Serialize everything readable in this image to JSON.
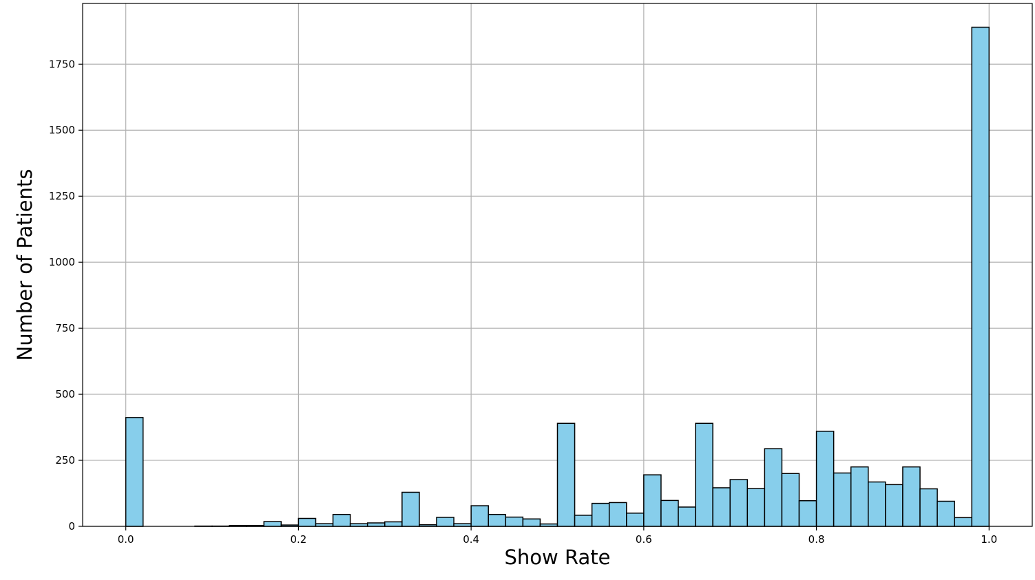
{
  "chart_data": {
    "type": "bar",
    "xlabel": "Show Rate",
    "ylabel": "Number of Patients",
    "xlim": [
      -0.05,
      1.05
    ],
    "ylim": [
      0,
      1980
    ],
    "grid": true,
    "x_ticks": [
      0.0,
      0.2,
      0.4,
      0.6,
      0.8,
      1.0
    ],
    "x_tick_labels": [
      "0.0",
      "0.2",
      "0.4",
      "0.6",
      "0.8",
      "1.0"
    ],
    "y_ticks": [
      0,
      250,
      500,
      750,
      1000,
      1250,
      1500,
      1750
    ],
    "y_tick_labels": [
      "0",
      "250",
      "500",
      "750",
      "1000",
      "1250",
      "1500",
      "1750"
    ],
    "bin_width": 0.02,
    "bin_starts": [
      0.0,
      0.02,
      0.04,
      0.06,
      0.08,
      0.1,
      0.12,
      0.14,
      0.16,
      0.18,
      0.2,
      0.22,
      0.24,
      0.26,
      0.28,
      0.3,
      0.32,
      0.34,
      0.36,
      0.38,
      0.4,
      0.42,
      0.44,
      0.46,
      0.48,
      0.5,
      0.52,
      0.54,
      0.56,
      0.58,
      0.6,
      0.62,
      0.64,
      0.66,
      0.68,
      0.7,
      0.72,
      0.74,
      0.76,
      0.78,
      0.8,
      0.82,
      0.84,
      0.86,
      0.88,
      0.9,
      0.92,
      0.94,
      0.96,
      0.98
    ],
    "values": [
      412,
      0,
      0,
      0,
      1,
      1,
      3,
      3,
      18,
      5,
      30,
      10,
      45,
      10,
      13,
      17,
      129,
      6,
      34,
      10,
      78,
      45,
      35,
      28,
      9,
      390,
      42,
      87,
      90,
      50,
      195,
      98,
      73,
      390,
      146,
      177,
      143,
      294,
      200,
      97,
      360,
      202,
      225,
      168,
      158,
      225,
      142,
      95,
      33,
      1890
    ],
    "bar_color": "#87CEEB",
    "edge_color": "#000000",
    "grid_color": "#b0b0b0"
  }
}
